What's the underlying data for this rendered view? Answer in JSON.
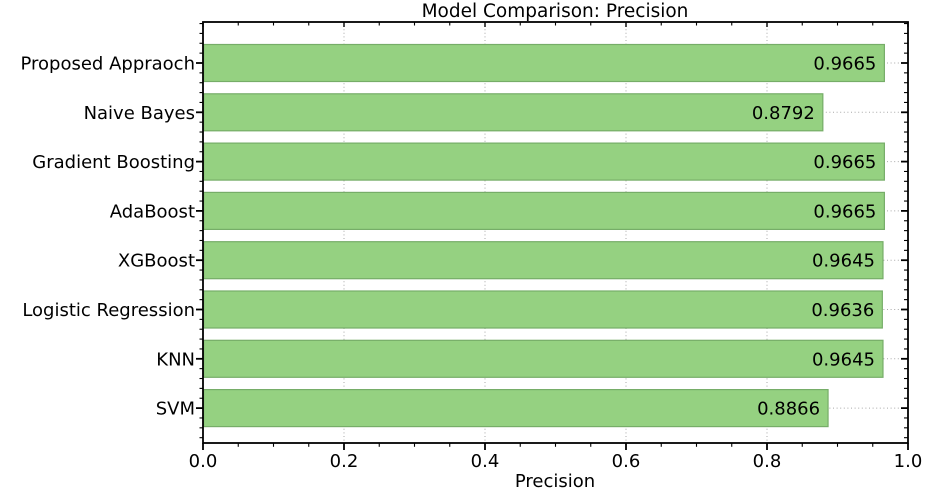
{
  "chart_data": {
    "type": "bar",
    "orientation": "horizontal",
    "title": "Model Comparison: Precision",
    "xlabel": "Precision",
    "ylabel": "",
    "categories": [
      "Proposed Appraoch",
      "Naive Bayes",
      "Gradient Boosting",
      "AdaBoost",
      "XGBoost",
      "Logistic Regression",
      "KNN",
      "SVM"
    ],
    "values": [
      0.9665,
      0.8792,
      0.9665,
      0.9665,
      0.9645,
      0.9636,
      0.9645,
      0.8866
    ],
    "value_label_decimals": 4,
    "xlim": [
      0.0,
      1.0
    ],
    "x_ticks": [
      0.0,
      0.2,
      0.4,
      0.6,
      0.8,
      1.0
    ],
    "x_tick_labels": [
      "0.0",
      "0.2",
      "0.4",
      "0.6",
      "0.8",
      "1.0"
    ],
    "x_minor_tick_step": 0.05,
    "grid": "on",
    "grid_style": "dotted",
    "grid_lines": "vertical at major x ticks, horizontal at bar centers",
    "legend": "none",
    "colors": {
      "bar_fill": "#95d181",
      "bar_edge": "#76ad68",
      "grid": "#a8a8a8",
      "spine": "#000000",
      "text": "#000000",
      "background": "#ffffff"
    }
  }
}
